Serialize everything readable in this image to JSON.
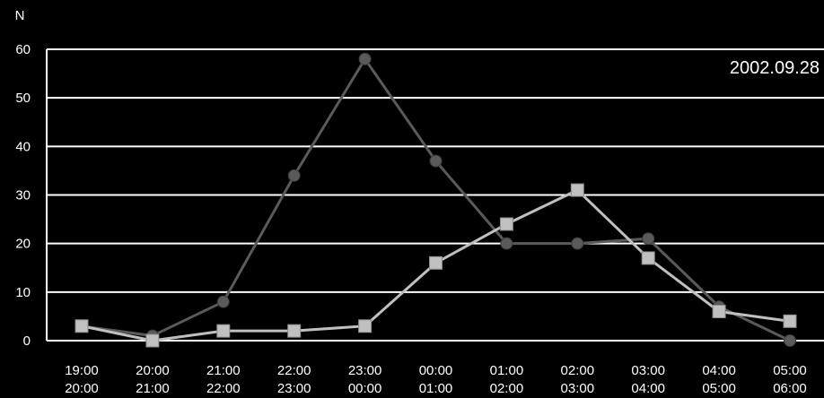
{
  "chart_data": {
    "type": "line",
    "ylabel": "N",
    "annotation": "2002.09.28",
    "ylim": [
      0,
      60
    ],
    "yticks": [
      0,
      10,
      20,
      30,
      40,
      50,
      60
    ],
    "grid": true,
    "categories": [
      {
        "top": "19:00",
        "bottom": "20:00"
      },
      {
        "top": "20:00",
        "bottom": "21:00"
      },
      {
        "top": "21:00",
        "bottom": "22:00"
      },
      {
        "top": "22:00",
        "bottom": "23:00"
      },
      {
        "top": "23:00",
        "bottom": "00:00"
      },
      {
        "top": "00:00",
        "bottom": "01:00"
      },
      {
        "top": "01:00",
        "bottom": "02:00"
      },
      {
        "top": "02:00",
        "bottom": "03:00"
      },
      {
        "top": "03:00",
        "bottom": "04:00"
      },
      {
        "top": "04:00",
        "bottom": "05:00"
      },
      {
        "top": "05:00",
        "bottom": "06:00"
      }
    ],
    "series": [
      {
        "marker": "circle",
        "color": "#5a5a5a",
        "values": [
          3,
          1,
          8,
          34,
          58,
          37,
          20,
          20,
          21,
          7,
          0
        ]
      },
      {
        "marker": "square",
        "color": "#c0c0c0",
        "values": [
          3,
          0,
          2,
          2,
          3,
          16,
          24,
          31,
          17,
          6,
          4
        ]
      }
    ]
  }
}
